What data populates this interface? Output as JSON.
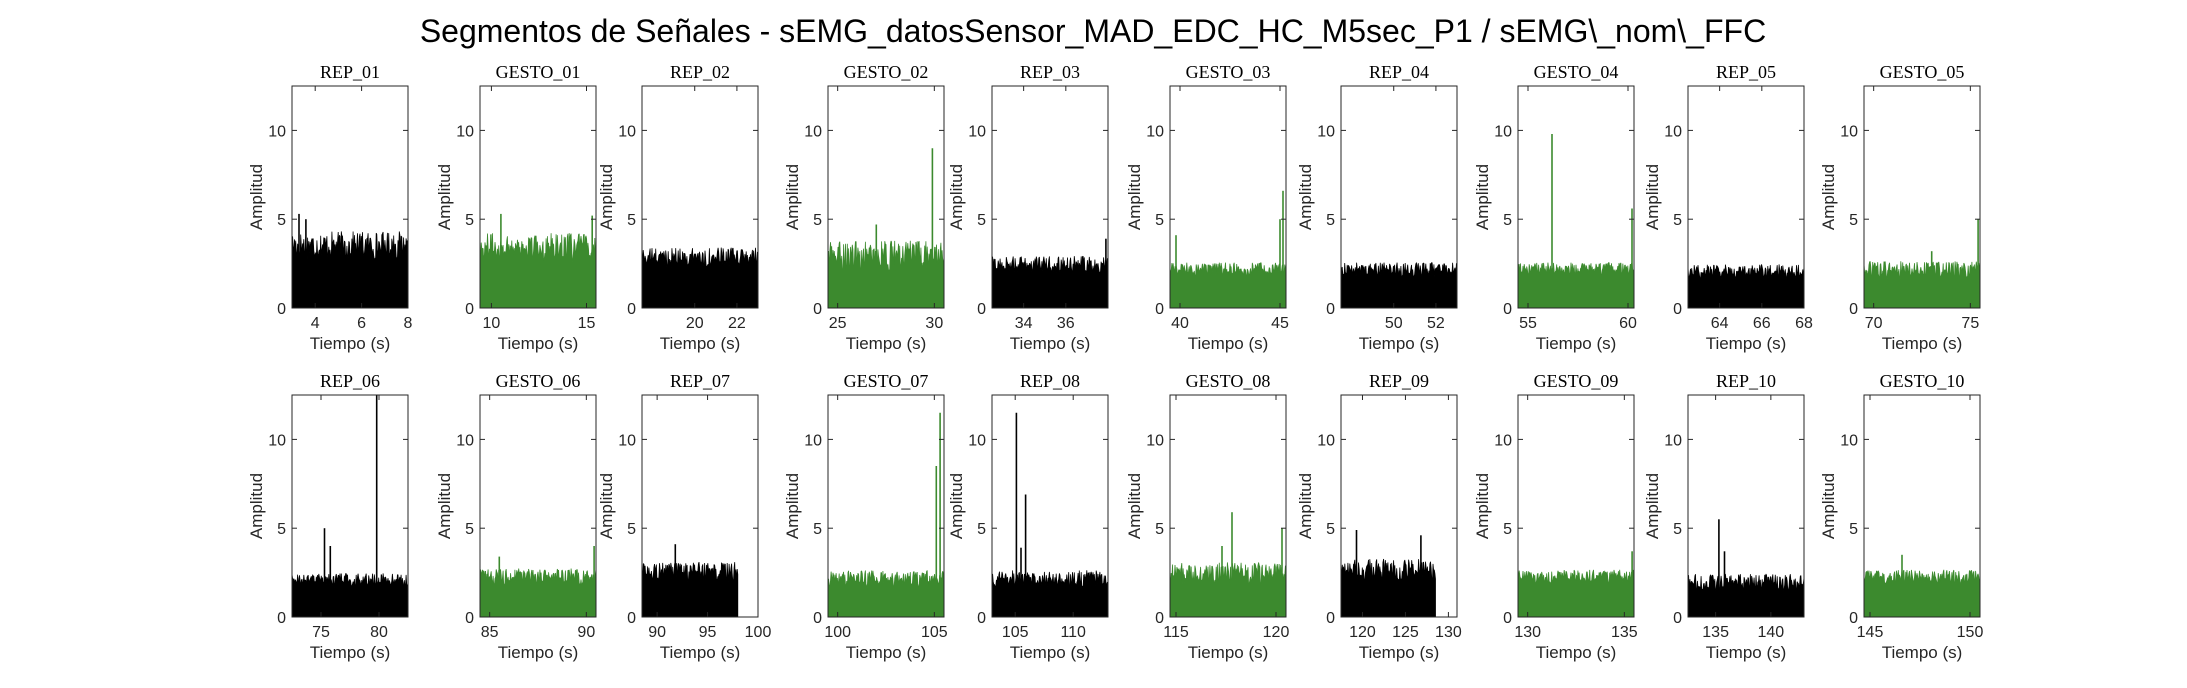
{
  "figure_title": "Segmentos de Señales - sEMG_datosSensor_MAD_EDC_HC_M5sec_P1 / sEMG\\_nom\\_FFC",
  "colors": {
    "rep": "#000000",
    "gesto": "#3c8a2e",
    "axis": "#262626"
  },
  "chart_data": [
    {
      "type": "area",
      "title": "REP_01",
      "kind": "rep",
      "xlim": [
        3,
        8
      ],
      "xticks": [
        4,
        6,
        8
      ],
      "ylim": [
        0,
        12.5
      ],
      "yticks": [
        0,
        5,
        10
      ],
      "xlabel": "Tiempo (s)",
      "ylabel": "Amplitud",
      "end": 8,
      "level": 3.6,
      "spread": 1.0,
      "spikes": [
        [
          3.3,
          5.3
        ],
        [
          3.6,
          5.0
        ]
      ]
    },
    {
      "type": "area",
      "title": "GESTO_01",
      "kind": "gesto",
      "xlim": [
        9.4,
        15.5
      ],
      "xticks": [
        10,
        15
      ],
      "ylim": [
        0,
        12.5
      ],
      "yticks": [
        0,
        5,
        10
      ],
      "xlabel": "Tiempo (s)",
      "ylabel": "Amplitud",
      "end": 15.5,
      "level": 3.5,
      "spread": 1.0,
      "spikes": [
        [
          10.5,
          5.3
        ],
        [
          15.3,
          5.2
        ]
      ]
    },
    {
      "type": "area",
      "title": "REP_02",
      "kind": "rep",
      "xlim": [
        17.5,
        23
      ],
      "xticks": [
        20,
        22
      ],
      "ylim": [
        0,
        12.5
      ],
      "yticks": [
        0,
        5,
        10
      ],
      "xlabel": "Tiempo (s)",
      "ylabel": "Amplitud",
      "end": 23,
      "level": 2.9,
      "spread": 0.7,
      "spikes": []
    },
    {
      "type": "area",
      "title": "GESTO_02",
      "kind": "gesto",
      "xlim": [
        24.5,
        30.5
      ],
      "xticks": [
        25,
        30
      ],
      "ylim": [
        0,
        12.5
      ],
      "yticks": [
        0,
        5,
        10
      ],
      "xlabel": "Tiempo (s)",
      "ylabel": "Amplitud",
      "end": 30.5,
      "level": 3.0,
      "spread": 1.1,
      "spikes": [
        [
          29.9,
          9.0
        ],
        [
          27.0,
          4.7
        ]
      ]
    },
    {
      "type": "area",
      "title": "REP_03",
      "kind": "rep",
      "xlim": [
        32.5,
        38
      ],
      "xticks": [
        34,
        36
      ],
      "ylim": [
        0,
        12.5
      ],
      "yticks": [
        0,
        5,
        10
      ],
      "xlabel": "Tiempo (s)",
      "ylabel": "Amplitud",
      "end": 38,
      "level": 2.5,
      "spread": 0.6,
      "spikes": [
        [
          37.9,
          3.9
        ]
      ]
    },
    {
      "type": "area",
      "title": "GESTO_03",
      "kind": "gesto",
      "xlim": [
        39.5,
        45.3
      ],
      "xticks": [
        40,
        45
      ],
      "ylim": [
        0,
        12.5
      ],
      "yticks": [
        0,
        5,
        10
      ],
      "xlabel": "Tiempo (s)",
      "ylabel": "Amplitud",
      "end": 45.3,
      "level": 2.2,
      "spread": 0.5,
      "spikes": [
        [
          45.15,
          6.6
        ],
        [
          45.0,
          5.0
        ],
        [
          39.8,
          4.1
        ]
      ]
    },
    {
      "type": "area",
      "title": "REP_04",
      "kind": "rep",
      "xlim": [
        47.5,
        53
      ],
      "xticks": [
        50,
        52
      ],
      "ylim": [
        0,
        12.5
      ],
      "yticks": [
        0,
        5,
        10
      ],
      "xlabel": "Tiempo (s)",
      "ylabel": "Amplitud",
      "end": 53,
      "level": 2.2,
      "spread": 0.5,
      "spikes": []
    },
    {
      "type": "area",
      "title": "GESTO_04",
      "kind": "gesto",
      "xlim": [
        54.5,
        60.3
      ],
      "xticks": [
        55,
        60
      ],
      "ylim": [
        0,
        12.5
      ],
      "yticks": [
        0,
        5,
        10
      ],
      "xlabel": "Tiempo (s)",
      "ylabel": "Amplitud",
      "end": 60.3,
      "level": 2.2,
      "spread": 0.5,
      "spikes": [
        [
          56.2,
          9.8
        ],
        [
          60.2,
          5.6
        ]
      ]
    },
    {
      "type": "area",
      "title": "REP_05",
      "kind": "rep",
      "xlim": [
        62.5,
        68
      ],
      "xticks": [
        64,
        66,
        68
      ],
      "ylim": [
        0,
        12.5
      ],
      "yticks": [
        0,
        5,
        10
      ],
      "xlabel": "Tiempo (s)",
      "ylabel": "Amplitud",
      "end": 68,
      "level": 2.1,
      "spread": 0.5,
      "spikes": []
    },
    {
      "type": "area",
      "title": "GESTO_05",
      "kind": "gesto",
      "xlim": [
        69.5,
        75.5
      ],
      "xticks": [
        70,
        75
      ],
      "ylim": [
        0,
        12.5
      ],
      "yticks": [
        0,
        5,
        10
      ],
      "xlabel": "Tiempo (s)",
      "ylabel": "Amplitud",
      "end": 75.5,
      "level": 2.2,
      "spread": 0.6,
      "spikes": [
        [
          75.4,
          5.0
        ],
        [
          73.0,
          3.2
        ]
      ]
    },
    {
      "type": "area",
      "title": "REP_06",
      "kind": "rep",
      "xlim": [
        72.5,
        82.5
      ],
      "xticks": [
        75,
        80
      ],
      "ylim": [
        0,
        12.5
      ],
      "yticks": [
        0,
        5,
        10
      ],
      "xlabel": "Tiempo (s)",
      "ylabel": "Amplitud",
      "end": 82.5,
      "level": 2.1,
      "spread": 0.5,
      "spikes": [
        [
          79.8,
          12.6
        ],
        [
          75.3,
          5.0
        ],
        [
          75.8,
          4.0
        ]
      ]
    },
    {
      "type": "area",
      "title": "GESTO_06",
      "kind": "gesto",
      "xlim": [
        84.5,
        90.5
      ],
      "xticks": [
        85,
        90
      ],
      "ylim": [
        0,
        12.5
      ],
      "yticks": [
        0,
        5,
        10
      ],
      "xlabel": "Tiempo (s)",
      "ylabel": "Amplitud",
      "end": 90.5,
      "level": 2.3,
      "spread": 0.6,
      "spikes": [
        [
          90.4,
          4.0
        ],
        [
          85.5,
          3.4
        ]
      ]
    },
    {
      "type": "area",
      "title": "REP_07",
      "kind": "rep",
      "xlim": [
        88.5,
        100
      ],
      "xticks": [
        90,
        95,
        100
      ],
      "ylim": [
        0,
        12.5
      ],
      "yticks": [
        0,
        5,
        10
      ],
      "xlabel": "Tiempo (s)",
      "ylabel": "Amplitud",
      "end": 98,
      "level": 2.6,
      "spread": 0.7,
      "spikes": [
        [
          91.8,
          4.1
        ]
      ]
    },
    {
      "type": "area",
      "title": "GESTO_07",
      "kind": "gesto",
      "xlim": [
        99.5,
        105.5
      ],
      "xticks": [
        100,
        105
      ],
      "ylim": [
        0,
        12.5
      ],
      "yticks": [
        0,
        5,
        10
      ],
      "xlabel": "Tiempo (s)",
      "ylabel": "Amplitud",
      "end": 105.5,
      "level": 2.2,
      "spread": 0.6,
      "spikes": [
        [
          105.3,
          11.5
        ],
        [
          105.1,
          8.5
        ]
      ]
    },
    {
      "type": "area",
      "title": "REP_08",
      "kind": "rep",
      "xlim": [
        103,
        113
      ],
      "xticks": [
        105,
        110
      ],
      "ylim": [
        0,
        12.5
      ],
      "yticks": [
        0,
        5,
        10
      ],
      "xlabel": "Tiempo (s)",
      "ylabel": "Amplitud",
      "end": 113,
      "level": 2.2,
      "spread": 0.6,
      "spikes": [
        [
          105.1,
          11.5
        ],
        [
          105.9,
          6.9
        ],
        [
          105.5,
          3.9
        ]
      ]
    },
    {
      "type": "area",
      "title": "GESTO_08",
      "kind": "gesto",
      "xlim": [
        114.7,
        120.5
      ],
      "xticks": [
        115,
        120
      ],
      "ylim": [
        0,
        12.5
      ],
      "yticks": [
        0,
        5,
        10
      ],
      "xlabel": "Tiempo (s)",
      "ylabel": "Amplitud",
      "end": 120.5,
      "level": 2.5,
      "spread": 0.8,
      "spikes": [
        [
          117.8,
          5.9
        ],
        [
          120.3,
          5.0
        ],
        [
          117.3,
          4.0
        ]
      ]
    },
    {
      "type": "area",
      "title": "REP_09",
      "kind": "rep",
      "xlim": [
        117.5,
        131
      ],
      "xticks": [
        120,
        125,
        130
      ],
      "ylim": [
        0,
        12.5
      ],
      "yticks": [
        0,
        5,
        10
      ],
      "xlabel": "Tiempo (s)",
      "ylabel": "Amplitud",
      "end": 128.5,
      "level": 2.7,
      "spread": 0.8,
      "spikes": [
        [
          119.3,
          4.9
        ],
        [
          126.8,
          4.6
        ]
      ]
    },
    {
      "type": "area",
      "title": "GESTO_09",
      "kind": "gesto",
      "xlim": [
        129.5,
        135.5
      ],
      "xticks": [
        130,
        135
      ],
      "ylim": [
        0,
        12.5
      ],
      "yticks": [
        0,
        5,
        10
      ],
      "xlabel": "Tiempo (s)",
      "ylabel": "Amplitud",
      "end": 135.5,
      "level": 2.3,
      "spread": 0.5,
      "spikes": [
        [
          135.4,
          3.7
        ]
      ]
    },
    {
      "type": "area",
      "title": "REP_10",
      "kind": "rep",
      "xlim": [
        132.5,
        143
      ],
      "xticks": [
        135,
        140
      ],
      "ylim": [
        0,
        12.5
      ],
      "yticks": [
        0,
        5,
        10
      ],
      "xlabel": "Tiempo (s)",
      "ylabel": "Amplitud",
      "end": 143,
      "level": 2.0,
      "spread": 0.6,
      "spikes": [
        [
          135.3,
          5.5
        ],
        [
          135.8,
          3.7
        ]
      ]
    },
    {
      "type": "area",
      "title": "GESTO_10",
      "kind": "gesto",
      "xlim": [
        144.7,
        150.5
      ],
      "xticks": [
        145,
        150
      ],
      "ylim": [
        0,
        12.5
      ],
      "yticks": [
        0,
        5,
        10
      ],
      "xlabel": "Tiempo (s)",
      "ylabel": "Amplitud",
      "end": 150.5,
      "level": 2.3,
      "spread": 0.5,
      "spikes": [
        [
          146.6,
          3.5
        ]
      ]
    }
  ]
}
